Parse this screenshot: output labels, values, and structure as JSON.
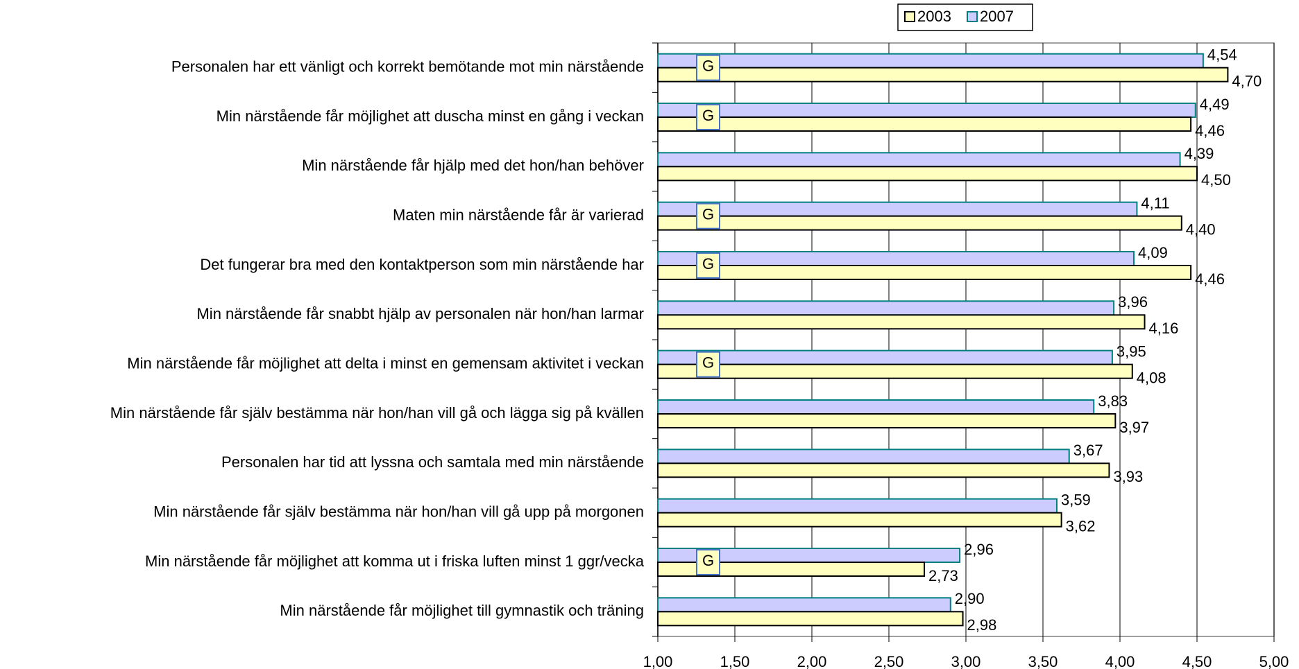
{
  "chart_data": {
    "type": "bar",
    "orientation": "horizontal",
    "categories": [
      "Personalen har ett vänligt och korrekt bemötande mot min närstående",
      "Min närstående får möjlighet att duscha minst en gång i veckan",
      "Min närstående får hjälp med det hon/han behöver",
      "Maten min närstående får är varierad",
      "Det fungerar bra med den kontaktperson som min närstående har",
      "Min närstående får snabbt hjälp av personalen när hon/han larmar",
      "Min närstående får möjlighet att delta i minst en gemensam aktivitet i veckan",
      "Min närstående får själv bestämma när hon/han vill gå och lägga sig på kvällen",
      "Personalen har tid att lyssna och samtala med min närstående",
      "Min närstående får själv bestämma när hon/han vill gå upp på morgonen",
      "Min närstående får möjlighet att komma ut i friska luften minst 1 ggr/vecka",
      "Min närstående får möjlighet till gymnastik och träning"
    ],
    "markers": [
      "G",
      "G",
      null,
      "G",
      "G",
      null,
      "G",
      null,
      null,
      null,
      "G",
      null
    ],
    "series": [
      {
        "name": "2003",
        "color": "#ffffc0",
        "edge": "#000000",
        "values": [
          4.7,
          4.46,
          4.5,
          4.4,
          4.46,
          4.16,
          4.08,
          3.97,
          3.93,
          3.62,
          2.73,
          2.98
        ],
        "value_labels": [
          "4,70",
          "4,46",
          "4,50",
          "4,40",
          "4,46",
          "4,16",
          "4,08",
          "3,97",
          "3,93",
          "3,62",
          "2,73",
          "2,98"
        ]
      },
      {
        "name": "2007",
        "color": "#ccccff",
        "edge": "#008080",
        "values": [
          4.54,
          4.49,
          4.39,
          4.11,
          4.09,
          3.96,
          3.95,
          3.83,
          3.67,
          3.59,
          2.96,
          2.9
        ],
        "value_labels": [
          "4,54",
          "4,49",
          "4,39",
          "4,11",
          "4,09",
          "3,96",
          "3,95",
          "3,83",
          "3,67",
          "3,59",
          "2,96",
          "2,90"
        ]
      }
    ],
    "xlim": [
      1.0,
      5.0
    ],
    "xticks": [
      {
        "value": 1.0,
        "label": "1,00"
      },
      {
        "value": 1.5,
        "label": "1,50"
      },
      {
        "value": 2.0,
        "label": "2,00"
      },
      {
        "value": 2.5,
        "label": "2,50"
      },
      {
        "value": 3.0,
        "label": "3,00"
      },
      {
        "value": 3.5,
        "label": "3,50"
      },
      {
        "value": 4.0,
        "label": "4,00"
      },
      {
        "value": 4.5,
        "label": "4,50"
      },
      {
        "value": 5.0,
        "label": "5,00"
      }
    ],
    "grid": true,
    "legend": "top"
  }
}
